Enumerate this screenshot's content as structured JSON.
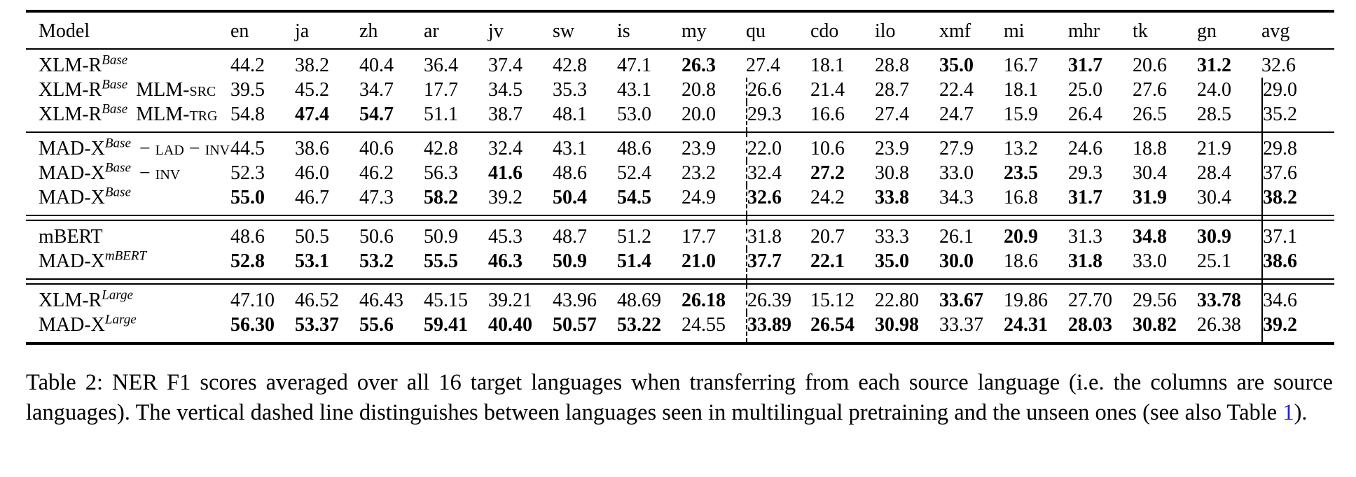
{
  "table": {
    "model_header": "Model",
    "columns": [
      "en",
      "ja",
      "zh",
      "ar",
      "jv",
      "sw",
      "is",
      "my",
      "qu",
      "cdo",
      "ilo",
      "xmf",
      "mi",
      "mhr",
      "tk",
      "gn",
      "avg"
    ],
    "dashed_after_col": "my",
    "solid_before_col": "avg",
    "rule_color": "#000000",
    "groups": [
      {
        "rows": [
          {
            "model": {
              "base": "XLM-R",
              "sup": "Base",
              "suffix": []
            },
            "values": [
              "44.2",
              "38.2",
              "40.4",
              "36.4",
              "37.4",
              "42.8",
              "47.1",
              "26.3",
              "27.4",
              "18.1",
              "28.8",
              "35.0",
              "16.7",
              "31.7",
              "20.6",
              "31.2",
              "32.6"
            ],
            "bold": [
              7,
              11,
              13,
              15
            ]
          },
          {
            "model": {
              "base": "XLM-R",
              "sup": "Base",
              "suffix": [
                {
                  "t": "MLM-",
                  "sc": false
                },
                {
                  "t": "src",
                  "sc": true
                }
              ]
            },
            "values": [
              "39.5",
              "45.2",
              "34.7",
              "17.7",
              "34.5",
              "35.3",
              "43.1",
              "20.8",
              "26.6",
              "21.4",
              "28.7",
              "22.4",
              "18.1",
              "25.0",
              "27.6",
              "24.0",
              "29.0"
            ],
            "bold": []
          },
          {
            "model": {
              "base": "XLM-R",
              "sup": "Base",
              "suffix": [
                {
                  "t": "MLM-",
                  "sc": false
                },
                {
                  "t": "trg",
                  "sc": true
                }
              ]
            },
            "values": [
              "54.8",
              "47.4",
              "54.7",
              "51.1",
              "38.7",
              "48.1",
              "53.0",
              "20.0",
              "29.3",
              "16.6",
              "27.4",
              "24.7",
              "15.9",
              "26.4",
              "26.5",
              "28.5",
              "35.2"
            ],
            "bold": [
              1,
              2
            ]
          }
        ],
        "sep_after": "single"
      },
      {
        "rows": [
          {
            "model": {
              "base": "MAD-X",
              "sup": "Base",
              "suffix": [
                {
                  "t": "− lad − inv",
                  "sc": true
                }
              ]
            },
            "values": [
              "44.5",
              "38.6",
              "40.6",
              "42.8",
              "32.4",
              "43.1",
              "48.6",
              "23.9",
              "22.0",
              "10.6",
              "23.9",
              "27.9",
              "13.2",
              "24.6",
              "18.8",
              "21.9",
              "29.8"
            ],
            "bold": []
          },
          {
            "model": {
              "base": "MAD-X",
              "sup": "Base",
              "suffix": [
                {
                  "t": "− inv",
                  "sc": true
                }
              ]
            },
            "values": [
              "52.3",
              "46.0",
              "46.2",
              "56.3",
              "41.6",
              "48.6",
              "52.4",
              "23.2",
              "32.4",
              "27.2",
              "30.8",
              "33.0",
              "23.5",
              "29.3",
              "30.4",
              "28.4",
              "37.6"
            ],
            "bold": [
              4,
              9,
              12
            ]
          },
          {
            "model": {
              "base": "MAD-X",
              "sup": "Base",
              "suffix": []
            },
            "values": [
              "55.0",
              "46.7",
              "47.3",
              "58.2",
              "39.2",
              "50.4",
              "54.5",
              "24.9",
              "32.6",
              "24.2",
              "33.8",
              "34.3",
              "16.8",
              "31.7",
              "31.9",
              "30.4",
              "38.2"
            ],
            "bold": [
              0,
              3,
              5,
              6,
              8,
              10,
              13,
              14,
              16
            ]
          }
        ],
        "sep_after": "double"
      },
      {
        "rows": [
          {
            "model": {
              "base": "mBERT",
              "sup": "",
              "suffix": []
            },
            "values": [
              "48.6",
              "50.5",
              "50.6",
              "50.9",
              "45.3",
              "48.7",
              "51.2",
              "17.7",
              "31.8",
              "20.7",
              "33.3",
              "26.1",
              "20.9",
              "31.3",
              "34.8",
              "30.9",
              "37.1"
            ],
            "bold": [
              12,
              14,
              15
            ]
          },
          {
            "model": {
              "base": "MAD-X",
              "sup": "mBERT",
              "suffix": []
            },
            "values": [
              "52.8",
              "53.1",
              "53.2",
              "55.5",
              "46.3",
              "50.9",
              "51.4",
              "21.0",
              "37.7",
              "22.1",
              "35.0",
              "30.0",
              "18.6",
              "31.8",
              "33.0",
              "25.1",
              "38.6"
            ],
            "bold": [
              0,
              1,
              2,
              3,
              4,
              5,
              6,
              7,
              8,
              9,
              10,
              11,
              13,
              16
            ]
          }
        ],
        "sep_after": "double"
      },
      {
        "rows": [
          {
            "model": {
              "base": "XLM-R",
              "sup": "Large",
              "suffix": []
            },
            "values": [
              "47.10",
              "46.52",
              "46.43",
              "45.15",
              "39.21",
              "43.96",
              "48.69",
              "26.18",
              "26.39",
              "15.12",
              "22.80",
              "33.67",
              "19.86",
              "27.70",
              "29.56",
              "33.78",
              "34.6"
            ],
            "bold": [
              7,
              11,
              15
            ]
          },
          {
            "model": {
              "base": "MAD-X",
              "sup": "Large",
              "suffix": []
            },
            "values": [
              "56.30",
              "53.37",
              "55.6",
              "59.41",
              "40.40",
              "50.57",
              "53.22",
              "24.55",
              "33.89",
              "26.54",
              "30.98",
              "33.37",
              "24.31",
              "28.03",
              "30.82",
              "26.38",
              "39.2"
            ],
            "bold": [
              0,
              1,
              2,
              3,
              4,
              5,
              6,
              8,
              9,
              10,
              12,
              13,
              14,
              16
            ]
          }
        ],
        "sep_after": "none"
      }
    ]
  },
  "caption": {
    "prefix": "Table 2: NER F1 scores averaged over all 16 target languages when transferring from each source language (i.e. the columns are source languages). The vertical dashed line distinguishes between languages seen in multilingual pretraining and the unseen ones (see also Table ",
    "link_text": "1",
    "suffix": ").",
    "link_color": "#2222cc"
  }
}
